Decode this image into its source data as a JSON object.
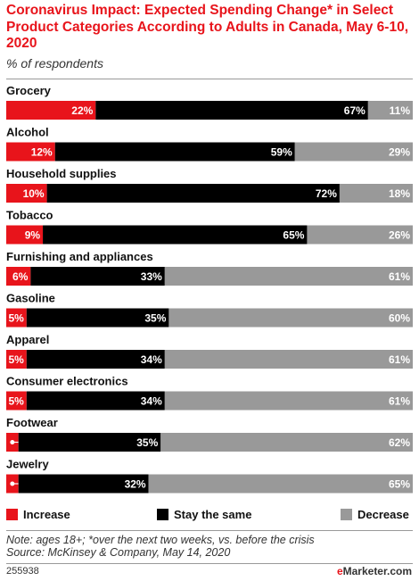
{
  "title": "Coronavirus Impact: Expected Spending Change* in Select Product Categories According to Adults in Canada, May 6-10, 2020",
  "subtitle": "% of respondents",
  "note": "Note: ages 18+; *over the next two weeks, vs. before the crisis",
  "source": "Source: McKinsey & Company, May 14, 2020",
  "chart_id": "255938",
  "brand_prefix": "e",
  "brand_suffix": "Marketer.com",
  "colors": {
    "increase": "#e8141b",
    "stay": "#000000",
    "decrease": "#999999"
  },
  "chart_data": {
    "type": "bar",
    "stacked": true,
    "orientation": "horizontal",
    "categories": [
      "Grocery",
      "Alcohol",
      "Household supplies",
      "Tobacco",
      "Furnishing and appliances",
      "Gasoline",
      "Apparel",
      "Consumer electronics",
      "Footwear",
      "Jewelry"
    ],
    "series": [
      {
        "name": "Increase",
        "values": [
          22,
          12,
          10,
          9,
          6,
          5,
          5,
          5,
          3,
          3
        ]
      },
      {
        "name": "Stay the same",
        "values": [
          67,
          59,
          72,
          65,
          33,
          35,
          34,
          34,
          35,
          32
        ]
      },
      {
        "name": "Decrease",
        "values": [
          11,
          29,
          18,
          26,
          61,
          60,
          61,
          61,
          62,
          65
        ]
      }
    ],
    "unit": "%",
    "xlim": [
      0,
      100
    ],
    "legend_position": "bottom"
  }
}
